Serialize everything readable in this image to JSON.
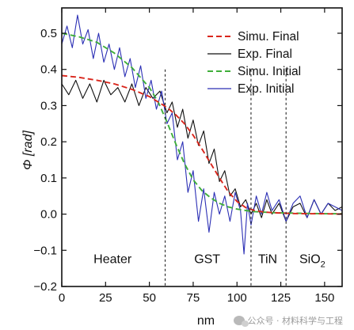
{
  "chart_data": {
    "type": "line",
    "xlabel": "nm",
    "ylabel": "Φ [rad]",
    "xlim": [
      0,
      160
    ],
    "ylim": [
      -0.2,
      0.57
    ],
    "x_ticks": [
      0,
      25,
      50,
      75,
      100,
      125,
      150
    ],
    "y_ticks": [
      -0.2,
      -0.1,
      0.0,
      0.1,
      0.2,
      0.3,
      0.4,
      0.5
    ],
    "y_tick_labels": [
      "−0.2",
      "−0.1",
      "0.0",
      "0.1",
      "0.2",
      "0.3",
      "0.4",
      "0.5"
    ],
    "legend_position": "top-right",
    "region_boundaries": [
      59,
      108,
      128
    ],
    "regions": [
      {
        "label": "Heater",
        "x": 29
      },
      {
        "label": "GST",
        "x": 83
      },
      {
        "label": "TiN",
        "x": 117.5
      },
      {
        "label": "SiO",
        "sub": "2",
        "x": 143
      }
    ],
    "series": [
      {
        "name": "Simu. Final",
        "color": "#d9261c",
        "style": "dashed",
        "x": [
          0,
          10,
          20,
          30,
          40,
          50,
          60,
          65,
          70,
          75,
          80,
          85,
          90,
          95,
          100,
          105,
          110,
          115,
          120,
          130,
          140,
          150,
          160
        ],
        "y": [
          0.383,
          0.378,
          0.37,
          0.36,
          0.345,
          0.325,
          0.295,
          0.275,
          0.25,
          0.218,
          0.18,
          0.14,
          0.1,
          0.062,
          0.035,
          0.018,
          0.01,
          0.006,
          0.004,
          0.002,
          0.001,
          0.001,
          0.0
        ]
      },
      {
        "name": "Exp. Final",
        "color": "#111111",
        "style": "solid",
        "x": [
          0,
          4,
          8,
          12,
          16,
          20,
          24,
          28,
          32,
          36,
          40,
          44,
          48,
          52,
          56,
          60,
          63,
          66,
          69,
          72,
          75,
          78,
          81,
          84,
          87,
          90,
          93,
          96,
          99,
          102,
          105,
          108,
          111,
          114,
          117,
          120,
          124,
          128,
          132,
          136,
          140,
          144,
          148,
          152,
          156,
          160
        ],
        "y": [
          0.36,
          0.33,
          0.37,
          0.32,
          0.36,
          0.31,
          0.37,
          0.33,
          0.35,
          0.31,
          0.36,
          0.3,
          0.35,
          0.32,
          0.34,
          0.28,
          0.31,
          0.24,
          0.29,
          0.21,
          0.26,
          0.19,
          0.23,
          0.14,
          0.18,
          0.09,
          0.12,
          0.05,
          0.07,
          0.02,
          0.04,
          0.0,
          0.03,
          -0.01,
          0.04,
          0.0,
          0.03,
          -0.02,
          0.02,
          0.03,
          -0.01,
          0.04,
          0.0,
          0.03,
          0.01,
          0.02
        ]
      },
      {
        "name": "Simu. Initial",
        "color": "#3fae3a",
        "style": "dashed",
        "x": [
          0,
          10,
          20,
          30,
          40,
          50,
          55,
          60,
          65,
          70,
          75,
          80,
          85,
          90,
          95,
          100,
          105,
          110,
          120,
          130,
          140,
          150,
          160
        ],
        "y": [
          0.5,
          0.49,
          0.475,
          0.445,
          0.405,
          0.35,
          0.31,
          0.255,
          0.195,
          0.14,
          0.095,
          0.065,
          0.045,
          0.03,
          0.02,
          0.014,
          0.01,
          0.007,
          0.004,
          0.003,
          0.002,
          0.001,
          0.001
        ]
      },
      {
        "name": "Exp. Initial",
        "color": "#2b2fb5",
        "style": "solid",
        "x": [
          0,
          3,
          6,
          9,
          12,
          15,
          18,
          21,
          24,
          27,
          30,
          33,
          36,
          39,
          42,
          45,
          48,
          51,
          54,
          57,
          60,
          63,
          66,
          69,
          72,
          75,
          78,
          81,
          84,
          87,
          90,
          93,
          96,
          99,
          102,
          104,
          106,
          108,
          111,
          114,
          117,
          120,
          124,
          128,
          132,
          136,
          140,
          144,
          148,
          152,
          156,
          160
        ],
        "y": [
          0.47,
          0.52,
          0.46,
          0.55,
          0.47,
          0.51,
          0.43,
          0.5,
          0.42,
          0.47,
          0.4,
          0.46,
          0.38,
          0.43,
          0.35,
          0.41,
          0.32,
          0.37,
          0.29,
          0.34,
          0.25,
          0.28,
          0.15,
          0.2,
          0.06,
          0.12,
          -0.02,
          0.07,
          -0.05,
          0.06,
          0.0,
          0.05,
          -0.02,
          0.06,
          0.01,
          -0.11,
          0.03,
          -0.03,
          0.05,
          0.0,
          0.06,
          0.01,
          0.04,
          -0.02,
          0.03,
          0.05,
          -0.01,
          0.04,
          0.0,
          0.03,
          0.02,
          0.01
        ]
      }
    ]
  },
  "watermark": {
    "text": "公众号 · 材料科学与工程"
  }
}
